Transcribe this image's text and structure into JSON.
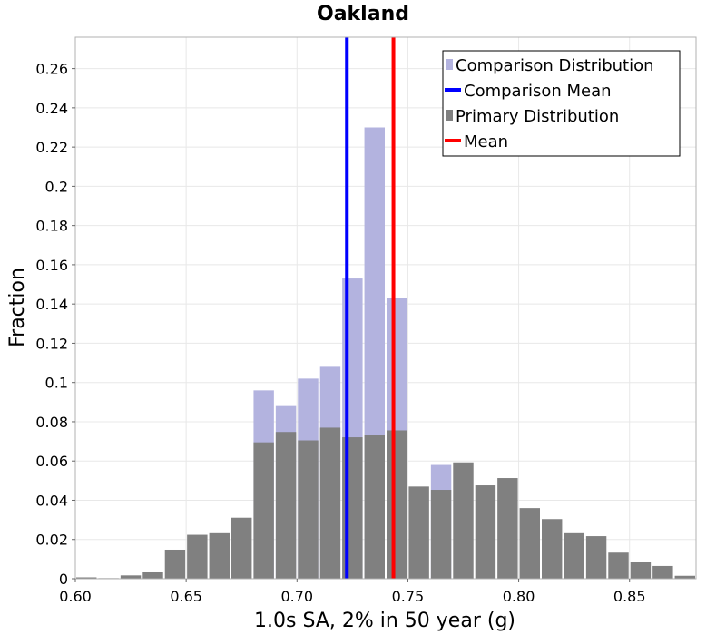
{
  "chart_data": {
    "type": "bar",
    "title": "Oakland",
    "xlabel": "1.0s SA, 2% in 50 year (g)",
    "ylabel": "Fraction",
    "xlim": [
      0.6,
      0.88
    ],
    "ylim": [
      0,
      0.276
    ],
    "grid": true,
    "bin_width": 0.01,
    "x_ticks": [
      0.6,
      0.65,
      0.7,
      0.75,
      0.8,
      0.85
    ],
    "x_tick_labels": [
      "0.60",
      "0.65",
      "0.70",
      "0.75",
      "0.80",
      "0.85"
    ],
    "y_ticks": [
      0,
      0.02,
      0.04,
      0.06,
      0.08,
      0.1,
      0.12,
      0.14,
      0.16,
      0.18,
      0.2,
      0.22,
      0.24,
      0.26
    ],
    "y_tick_labels": [
      "0",
      "0.02",
      "0.04",
      "0.06",
      "0.08",
      "0.1",
      "0.12",
      "0.14",
      "0.16",
      "0.18",
      "0.2",
      "0.22",
      "0.24",
      "0.26"
    ],
    "series": [
      {
        "name": "Comparison Distribution",
        "color": "#b3b3df",
        "bin_starts": [
          0.68,
          0.69,
          0.7,
          0.71,
          0.72,
          0.73,
          0.74,
          0.76
        ],
        "values": [
          0.096,
          0.088,
          0.102,
          0.108,
          0.153,
          0.23,
          0.143,
          0.058
        ]
      },
      {
        "name": "Primary Distribution",
        "color": "#808080",
        "bin_starts": [
          0.6,
          0.61,
          0.62,
          0.63,
          0.64,
          0.65,
          0.66,
          0.67,
          0.68,
          0.69,
          0.7,
          0.71,
          0.72,
          0.73,
          0.74,
          0.75,
          0.76,
          0.77,
          0.78,
          0.79,
          0.8,
          0.81,
          0.82,
          0.83,
          0.84,
          0.85,
          0.86,
          0.87
        ],
        "values": [
          0.0007,
          0.0003,
          0.0017,
          0.0037,
          0.0148,
          0.0224,
          0.0232,
          0.0311,
          0.0695,
          0.0748,
          0.0705,
          0.077,
          0.0721,
          0.0735,
          0.0756,
          0.047,
          0.0453,
          0.0593,
          0.0476,
          0.0513,
          0.036,
          0.0304,
          0.0232,
          0.0217,
          0.0133,
          0.0087,
          0.0065,
          0.0015
        ]
      }
    ],
    "reference_lines": [
      {
        "name": "Comparison Mean",
        "x": 0.7225,
        "color": "#0000ff"
      },
      {
        "name": "Mean",
        "x": 0.7435,
        "color": "#ff0000"
      }
    ],
    "legend": {
      "position": "top-right",
      "entries": [
        {
          "label": "Comparison Distribution",
          "kind": "bar",
          "color": "#b3b3df"
        },
        {
          "label": "Comparison Mean",
          "kind": "line",
          "color": "#0000ff"
        },
        {
          "label": "Primary Distribution",
          "kind": "bar",
          "color": "#808080"
        },
        {
          "label": "Mean",
          "kind": "line",
          "color": "#ff0000"
        }
      ]
    }
  }
}
